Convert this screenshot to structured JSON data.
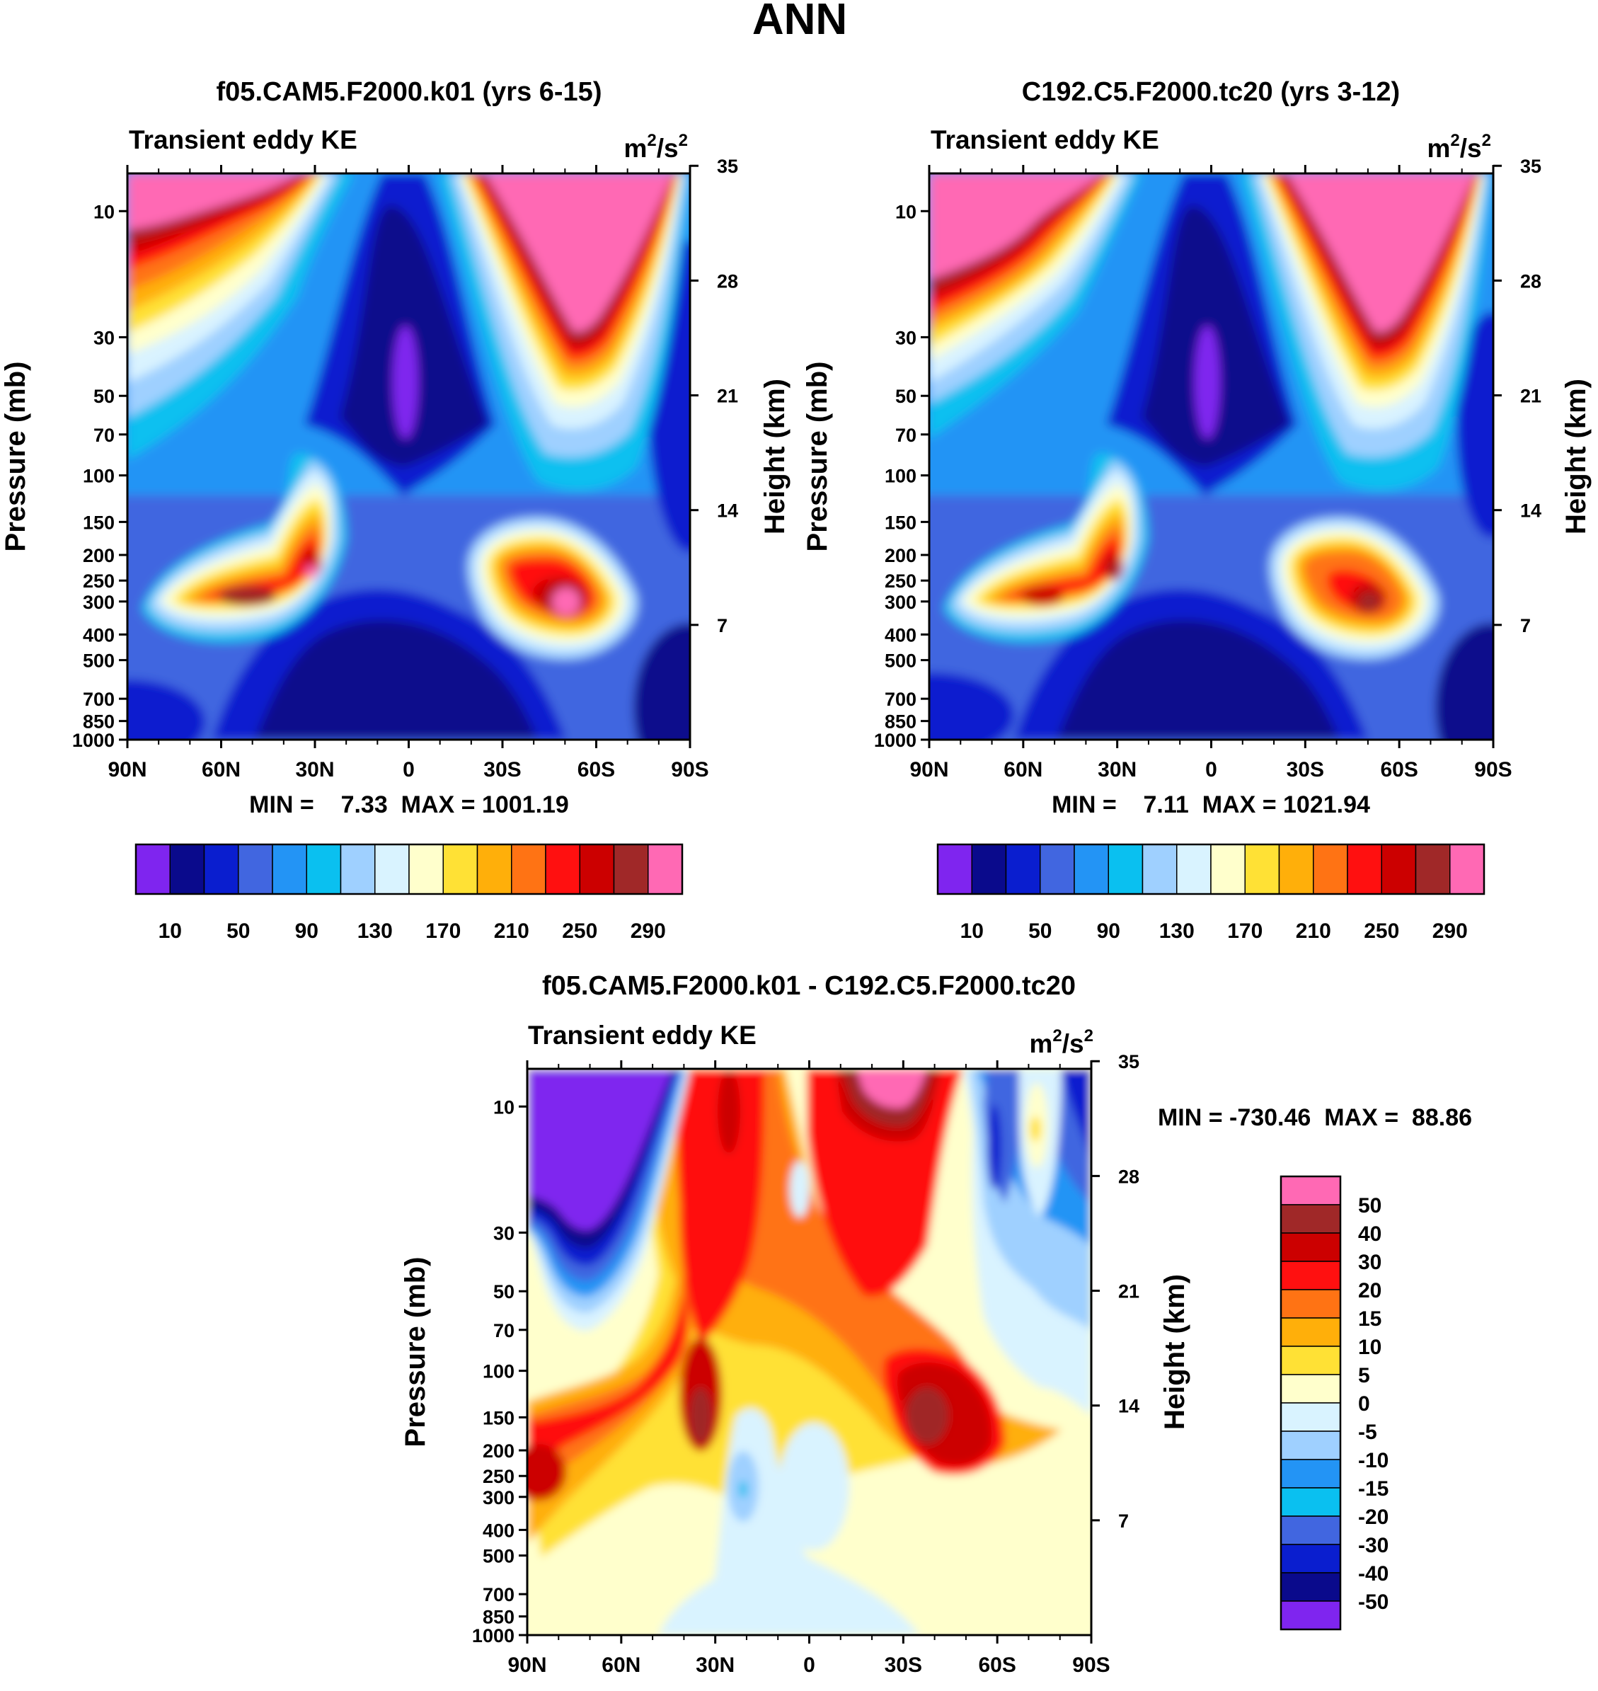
{
  "page": {
    "title": "ANN"
  },
  "palettes": {
    "abs": [
      "#7f25ef",
      "#0a0a8c",
      "#0a1ecf",
      "#4166e0",
      "#2394f5",
      "#0ac0f0",
      "#9fd0ff",
      "#d9f3ff",
      "#ffffcc",
      "#ffe135",
      "#ffaf0a",
      "#ff7314",
      "#ff1010",
      "#cc0000",
      "#a02828",
      "#ff69b4"
    ],
    "diff": [
      "#ff69b4",
      "#a02828",
      "#cc0000",
      "#ff1010",
      "#ff7314",
      "#ffaf0a",
      "#ffe135",
      "#ffffcc",
      "#d9f3ff",
      "#9fd0ff",
      "#2394f5",
      "#0ac0f0",
      "#4166e0",
      "#0a1ecf",
      "#0a0a8c",
      "#7f25ef"
    ]
  },
  "chart_data": [
    {
      "type": "heatmap",
      "title": "f05.CAM5.F2000.k01 (yrs 6-15)",
      "left_label": "Transient eddy KE",
      "right_label_base": "m",
      "right_label_sup": "2",
      "right_label_mid": "/s",
      "right_label_sup2": "2",
      "ylabel": "Pressure (mb)",
      "ylabel_right": "Height (km)",
      "x_ticks": [
        "90N",
        "60N",
        "30N",
        "0",
        "30S",
        "60S",
        "90S"
      ],
      "y_ticks": [
        "10",
        "30",
        "50",
        "70",
        "100",
        "150",
        "200",
        "250",
        "300",
        "400",
        "500",
        "700",
        "850",
        "1000"
      ],
      "y_ticks_right": [
        "35",
        "28",
        "21",
        "14",
        "7"
      ],
      "stats": "MIN =    7.33  MAX = 1001.19",
      "min": 7.33,
      "max": 1001.19,
      "colorbar_labels": [
        "10",
        "50",
        "90",
        "130",
        "170",
        "210",
        "250",
        "290"
      ],
      "colorbar_levels": [
        10,
        30,
        50,
        70,
        90,
        110,
        130,
        150,
        170,
        190,
        210,
        230,
        250,
        270,
        290
      ]
    },
    {
      "type": "heatmap",
      "title": "C192.C5.F2000.tc20 (yrs 3-12)",
      "left_label": "Transient eddy KE",
      "right_label_base": "m",
      "right_label_sup": "2",
      "right_label_mid": "/s",
      "right_label_sup2": "2",
      "ylabel": "Pressure (mb)",
      "ylabel_right": "Height (km)",
      "x_ticks": [
        "90N",
        "60N",
        "30N",
        "0",
        "30S",
        "60S",
        "90S"
      ],
      "y_ticks": [
        "10",
        "30",
        "50",
        "70",
        "100",
        "150",
        "200",
        "250",
        "300",
        "400",
        "500",
        "700",
        "850",
        "1000"
      ],
      "y_ticks_right": [
        "35",
        "28",
        "21",
        "14",
        "7"
      ],
      "stats": "MIN =    7.11  MAX = 1021.94",
      "min": 7.11,
      "max": 1021.94,
      "colorbar_labels": [
        "10",
        "50",
        "90",
        "130",
        "170",
        "210",
        "250",
        "290"
      ],
      "colorbar_levels": [
        10,
        30,
        50,
        70,
        90,
        110,
        130,
        150,
        170,
        190,
        210,
        230,
        250,
        270,
        290
      ]
    },
    {
      "type": "heatmap",
      "title": "f05.CAM5.F2000.k01 - C192.C5.F2000.tc20",
      "left_label": "Transient eddy KE",
      "right_label_base": "m",
      "right_label_sup": "2",
      "right_label_mid": "/s",
      "right_label_sup2": "2",
      "ylabel": "Pressure (mb)",
      "ylabel_right": "Height (km)",
      "x_ticks": [
        "90N",
        "60N",
        "30N",
        "0",
        "30S",
        "60S",
        "90S"
      ],
      "y_ticks": [
        "10",
        "30",
        "50",
        "70",
        "100",
        "150",
        "200",
        "250",
        "300",
        "400",
        "500",
        "700",
        "850",
        "1000"
      ],
      "y_ticks_right": [
        "35",
        "28",
        "21",
        "14",
        "7"
      ],
      "stats": "MIN = -730.46  MAX =  88.86",
      "min": -730.46,
      "max": 88.86,
      "colorbar_labels": [
        "50",
        "40",
        "30",
        "20",
        "15",
        "10",
        "5",
        "0",
        "-5",
        "-10",
        "-15",
        "-20",
        "-30",
        "-40",
        "-50"
      ],
      "colorbar_levels": [
        50,
        40,
        30,
        20,
        15,
        10,
        5,
        0,
        -5,
        -10,
        -15,
        -20,
        -30,
        -40,
        -50
      ]
    }
  ]
}
